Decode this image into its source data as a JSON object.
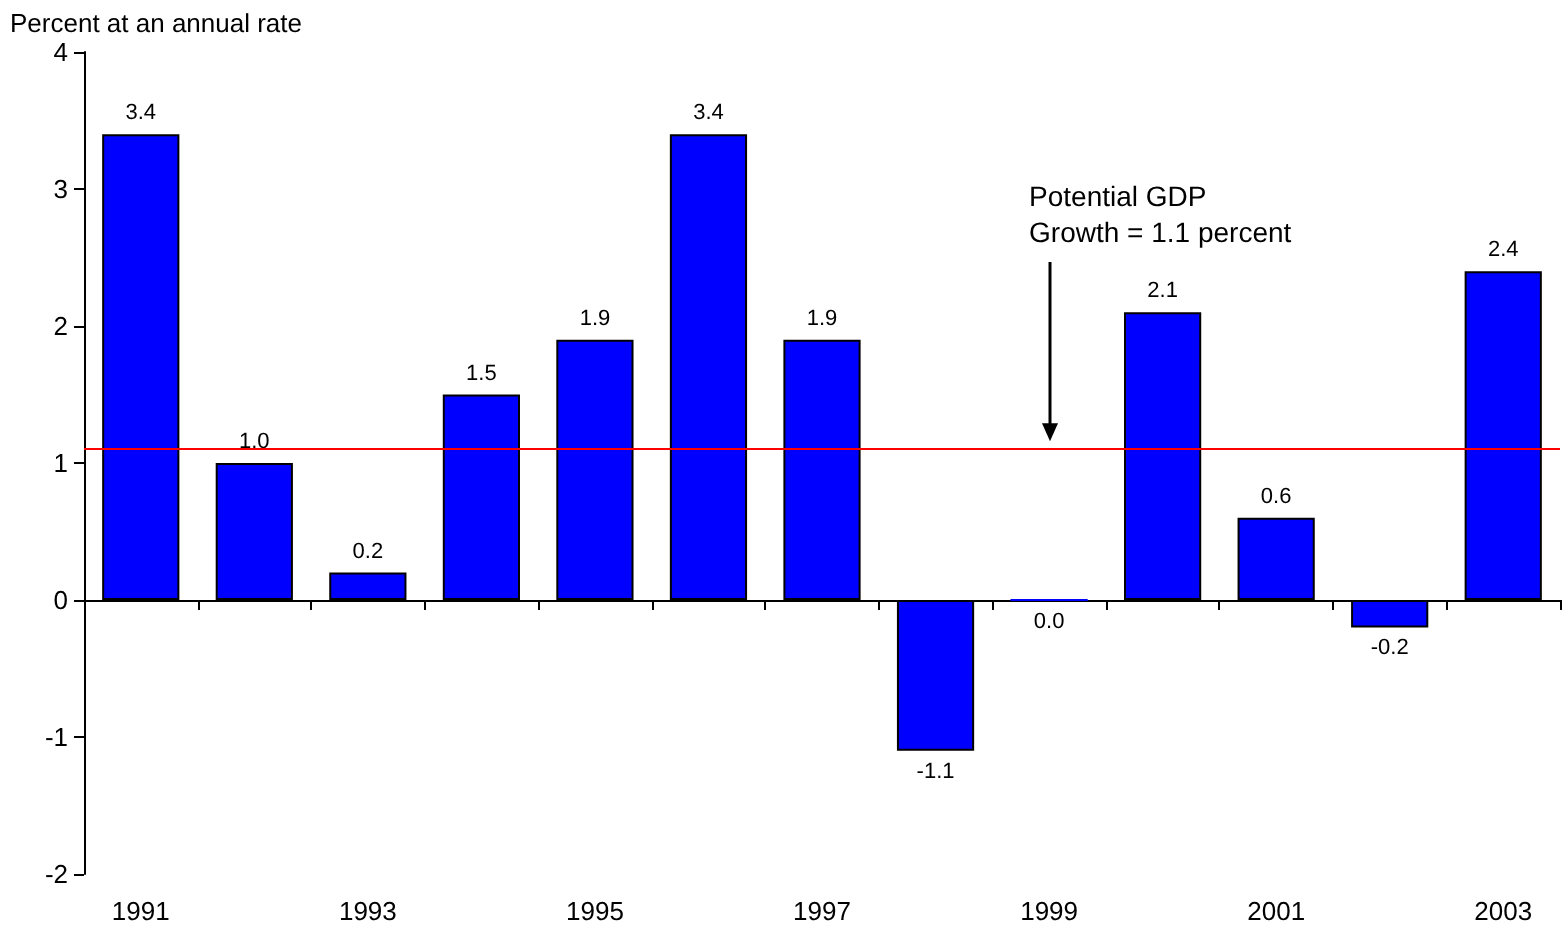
{
  "chart_data": {
    "type": "bar",
    "ylabel": "Percent at an annual rate",
    "categories": [
      "1991",
      null,
      "1993",
      null,
      "1995",
      null,
      "1997",
      null,
      "1999",
      null,
      "2001",
      null,
      "2003"
    ],
    "values": [
      3.4,
      1.0,
      0.2,
      1.5,
      1.9,
      3.4,
      1.9,
      -1.1,
      0.0,
      2.1,
      0.6,
      -0.2,
      2.4
    ],
    "color": "#0000ff",
    "value_labels": [
      "3.4",
      "1.0",
      "0.2",
      "1.5",
      "1.9",
      "3.4",
      "1.9",
      "-1.1",
      "0.0",
      "2.1",
      "0.6",
      "-0.2",
      "2.4"
    ],
    "ylim": [
      -2,
      4
    ],
    "yticks": [
      -2,
      -1,
      0,
      1,
      2,
      3,
      4
    ],
    "ref_lines": [
      {
        "axis": "y",
        "value": 1.1,
        "color": "#ff0000"
      }
    ],
    "annotations": [
      "Potential GDP\nGrowth = 1.1 percent"
    ]
  }
}
